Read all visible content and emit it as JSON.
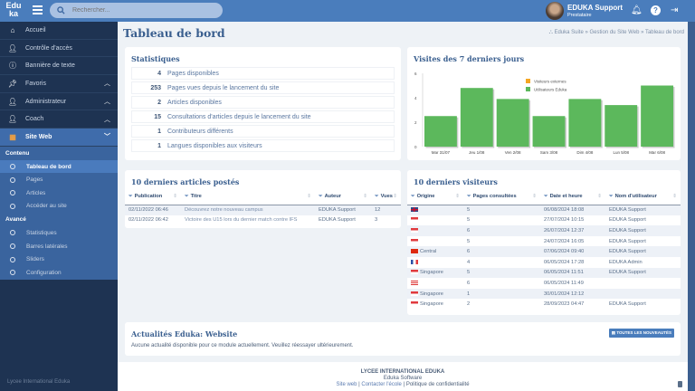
{
  "header": {
    "logo": "Edu ka",
    "search_placeholder": "Rechercher...",
    "user_name": "EDUKA Support",
    "user_role": "Prestataire",
    "icons": [
      "bell-icon",
      "help-icon",
      "logout-icon"
    ]
  },
  "sidebar": {
    "items": [
      {
        "label": "Accueil",
        "icon": "home-icon"
      },
      {
        "label": "Contrôle d'accès",
        "icon": "user-check-icon"
      },
      {
        "label": "Bannière de texte",
        "icon": "info-icon"
      },
      {
        "label": "Favoris",
        "icon": "pin-icon",
        "chevron": "up"
      },
      {
        "label": "Administrateur",
        "icon": "user-gear-icon",
        "chevron": "up"
      },
      {
        "label": "Coach",
        "icon": "user-gear-icon",
        "chevron": "up"
      },
      {
        "label": "Site Web",
        "icon": "website-icon",
        "chevron": "down",
        "active": true
      }
    ],
    "sections": [
      {
        "title": "Contenu",
        "items": [
          "Tableau de bord",
          "Pages",
          "Articles",
          "Accéder au site"
        ]
      },
      {
        "title": "Avancé",
        "items": [
          "Statistiques",
          "Barres latérales",
          "Sliders",
          "Configuration"
        ]
      }
    ],
    "footer": "Lycee International Eduka"
  },
  "page": {
    "title": "Tableau de bord",
    "breadcrumb": "Eduka Suite » Gestion du Site Web » Tableau de bord"
  },
  "stats": {
    "title": "Statistiques",
    "rows": [
      {
        "value": "4",
        "label": "Pages disponibles"
      },
      {
        "value": "253",
        "label": "Pages vues depuis le lancement du site"
      },
      {
        "value": "2",
        "label": "Articles disponibles"
      },
      {
        "value": "15",
        "label": "Consultations d'articles depuis le lancement du site"
      },
      {
        "value": "1",
        "label": "Contributeurs différents"
      },
      {
        "value": "1",
        "label": "Langues disponibles aux visiteurs"
      }
    ]
  },
  "chart_data": {
    "type": "bar",
    "title": "Visites des 7 derniers jours",
    "categories": [
      "Mar 31/07",
      "Jeu 1/08",
      "Ven 2/08",
      "Sam 3/08",
      "Dim 4/08",
      "Lun 5/08",
      "Mar 6/08"
    ],
    "series": [
      {
        "name": "Visiteurs externes",
        "color": "#f5a623",
        "values": [
          0,
          0,
          0,
          0,
          0,
          0,
          0
        ]
      },
      {
        "name": "Utilisateurs Eduka",
        "color": "#5cb85c",
        "values": [
          2.5,
          4.8,
          3.9,
          2.5,
          3.9,
          3.4,
          5
        ]
      }
    ],
    "ylim": [
      0,
      6
    ],
    "yticks": [
      "0",
      "2",
      "4",
      "6"
    ],
    "legend": "top-center"
  },
  "articles": {
    "title": "10 derniers articles postés",
    "columns": [
      "Publication",
      "Titre",
      "Auteur",
      "Vues"
    ],
    "rows": [
      [
        "02/11/2022 06:46",
        "Découvrez notre nouveau campus",
        "EDUKA Support",
        "12"
      ],
      [
        "02/11/2022 06:42",
        "Victoire des U15 lors du dernier match contre IFS",
        "EDUKA Support",
        "3"
      ]
    ]
  },
  "visitors": {
    "title": "10 derniers visiteurs",
    "columns": [
      "Origine",
      "Pages consultées",
      "Date et heure",
      "Nom d'utilisateur"
    ],
    "rows": [
      {
        "flag": "gb",
        "origin": "",
        "pages": "5",
        "date": "06/08/2024 18:08",
        "user": "EDUKA Support"
      },
      {
        "flag": "sg",
        "origin": "",
        "pages": "5",
        "date": "27/07/2024 10:15",
        "user": "EDUKA Support"
      },
      {
        "flag": "sg",
        "origin": "",
        "pages": "6",
        "date": "26/07/2024 12:37",
        "user": "EDUKA Support"
      },
      {
        "flag": "sg",
        "origin": "",
        "pages": "5",
        "date": "24/07/2024 16:05",
        "user": "EDUKA Support"
      },
      {
        "flag": "hk",
        "origin": "Central",
        "pages": "6",
        "date": "07/06/2024 09:40",
        "user": "EDUKA Support"
      },
      {
        "flag": "fr",
        "origin": "",
        "pages": "4",
        "date": "06/05/2024 17:28",
        "user": "EDUKA Admin"
      },
      {
        "flag": "sg",
        "origin": "Singapore",
        "pages": "5",
        "date": "06/05/2024 11:51",
        "user": "EDUKA Support"
      },
      {
        "flag": "us",
        "origin": "",
        "pages": "6",
        "date": "06/05/2024 11:49",
        "user": ""
      },
      {
        "flag": "sg",
        "origin": "Singapore",
        "pages": "1",
        "date": "30/01/2024 12:12",
        "user": ""
      },
      {
        "flag": "sg",
        "origin": "Singapore",
        "pages": "2",
        "date": "28/09/2023 04:47",
        "user": "EDUKA Support"
      }
    ]
  },
  "news": {
    "title": "Actualités Eduka: Website",
    "button": "TOUTES LES NOUVEAUTÉS",
    "message": "Aucune actualité disponible pour ce module actuellement. Veuillez réessayer ultérieurement."
  },
  "footer": {
    "school": "LYCEE INTERNATIONAL EDUKA",
    "software": "Eduka Software",
    "links": [
      "Site web",
      "Contacter l'école",
      "Politique de confidentialité"
    ]
  }
}
